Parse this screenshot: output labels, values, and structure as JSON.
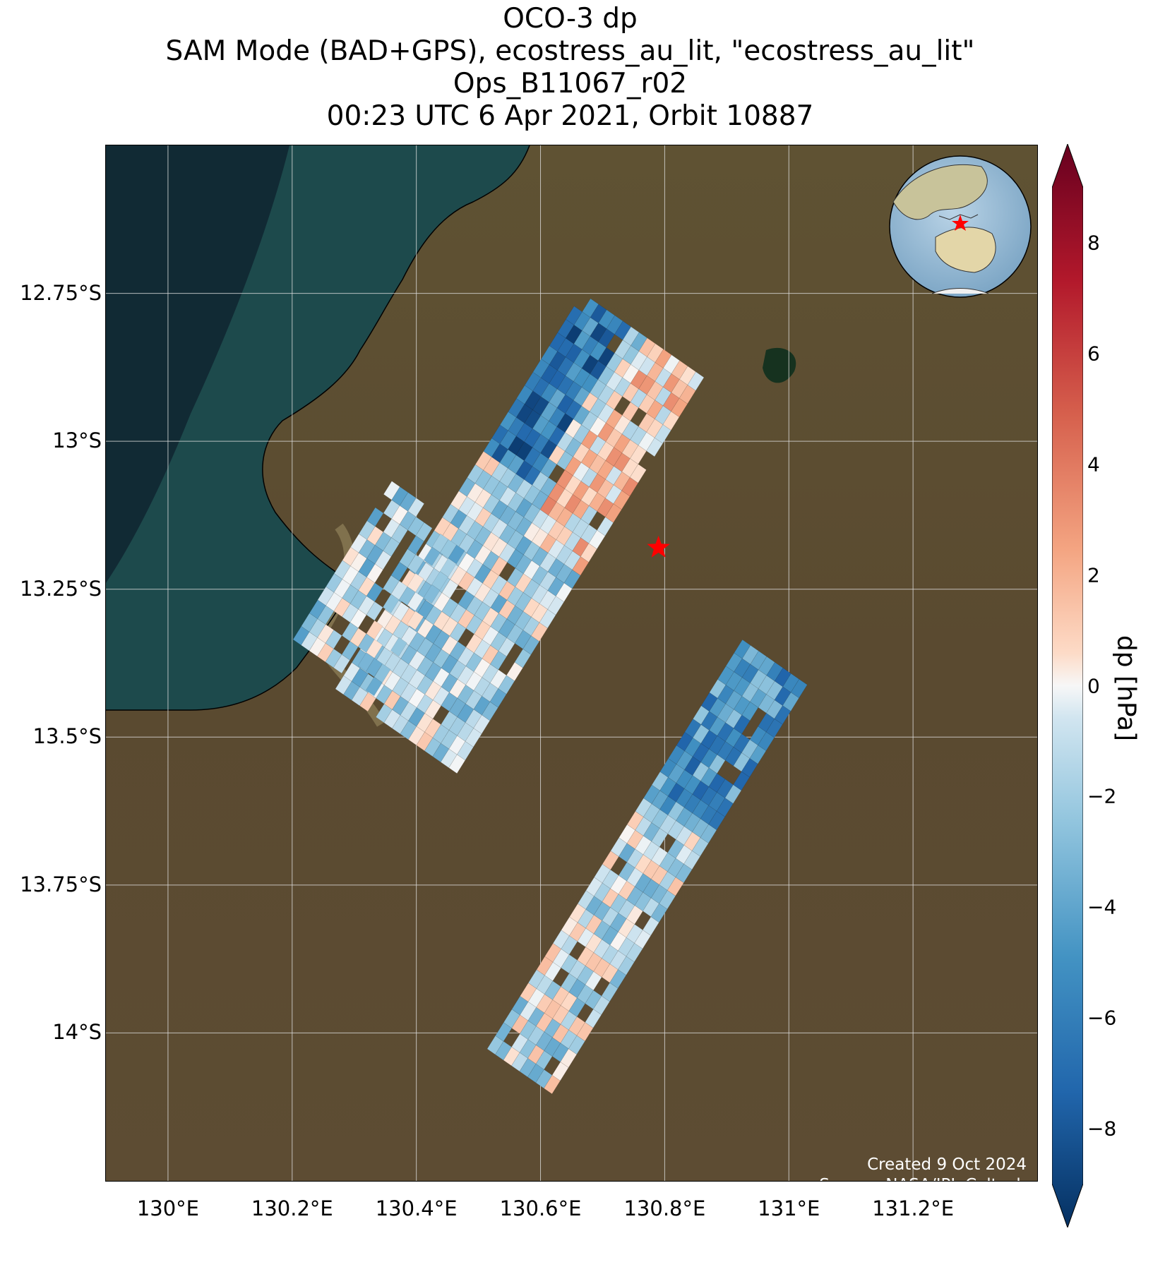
{
  "title": {
    "line1": "OCO-3 dp",
    "line2": "SAM Mode (BAD+GPS), ecostress_au_lit, \"ecostress_au_lit\"",
    "line3": "Ops_B11067_r02",
    "line4": "00:23 UTC 6 Apr 2021, Orbit 10887"
  },
  "map": {
    "lon_range": [
      129.9,
      131.4
    ],
    "lat_range": [
      -14.25,
      -12.5
    ],
    "lat_ticks": [
      {
        "value": -12.75,
        "label": "12.75°S"
      },
      {
        "value": -13.0,
        "label": "13°S"
      },
      {
        "value": -13.25,
        "label": "13.25°S"
      },
      {
        "value": -13.5,
        "label": "13.5°S"
      },
      {
        "value": -13.75,
        "label": "13.75°S"
      },
      {
        "value": -14.0,
        "label": "14°S"
      }
    ],
    "lon_ticks": [
      {
        "value": 130.0,
        "label": "130°E"
      },
      {
        "value": 130.2,
        "label": "130.2°E"
      },
      {
        "value": 130.4,
        "label": "130.4°E"
      },
      {
        "value": 130.6,
        "label": "130.6°E"
      },
      {
        "value": 130.8,
        "label": "130.8°E"
      },
      {
        "value": 131.0,
        "label": "131°E"
      },
      {
        "value": 131.2,
        "label": "131.2°E"
      }
    ],
    "target": {
      "lon": 130.79,
      "lat": -13.18,
      "color": "#ff0000",
      "icon": "star-marker-icon"
    },
    "globe_icon": "globe-inset-icon",
    "colors": {
      "ocean": "#1b4a4a",
      "land": "#5d4c33"
    }
  },
  "colorbar": {
    "label": "dp [hPa]",
    "min": -9,
    "max": 9,
    "ticks": [
      {
        "value": 8,
        "label": "8"
      },
      {
        "value": 6,
        "label": "6"
      },
      {
        "value": 4,
        "label": "4"
      },
      {
        "value": 2,
        "label": "2"
      },
      {
        "value": 0,
        "label": "0"
      },
      {
        "value": -2,
        "label": "−2"
      },
      {
        "value": -4,
        "label": "−4"
      },
      {
        "value": -6,
        "label": "−6"
      },
      {
        "value": -8,
        "label": "−8"
      }
    ],
    "colormap": "RdBu_r"
  },
  "credits": {
    "line1": "Created 9 Oct 2024",
    "line2": "Source: NASA/JPL-Caltech"
  }
}
